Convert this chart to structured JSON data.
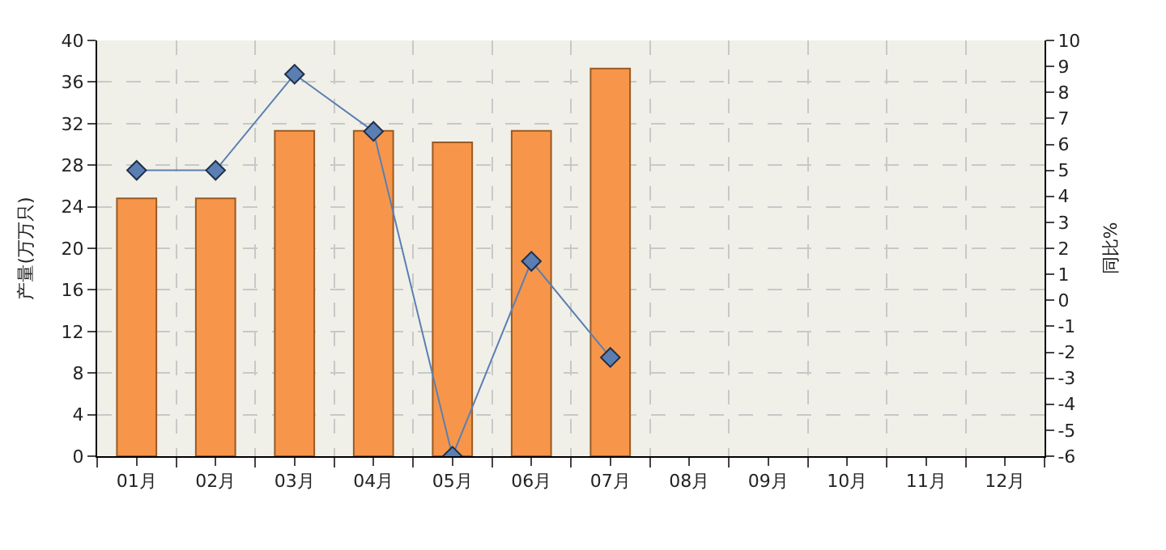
{
  "chart_data": {
    "type": "bar",
    "ylabel": "产量(万万只)",
    "y2label": "同比%",
    "categories": [
      "01月",
      "02月",
      "03月",
      "04月",
      "05月",
      "06月",
      "07月",
      "08月",
      "09月",
      "10月",
      "11月",
      "12月"
    ],
    "series": [
      {
        "color": "#f7964a",
        "values": [
          24.8,
          24.8,
          31.3,
          31.3,
          30.2,
          31.3,
          37.3,
          null,
          null,
          null,
          null,
          null
        ]
      },
      {
        "type": "line",
        "axis": "y2",
        "color": "#5b7fb2",
        "marker": "diamond",
        "values": [
          5.0,
          5.0,
          8.7,
          6.5,
          -6.0,
          1.5,
          -2.2,
          null,
          null,
          null,
          null,
          null
        ]
      }
    ],
    "ylim": [
      0,
      40
    ],
    "yticks": [
      0,
      4,
      8,
      12,
      16,
      20,
      24,
      28,
      32,
      36,
      40
    ],
    "y2lim": [
      -6,
      10
    ],
    "y2ticks": [
      -6,
      -5,
      -4,
      -3,
      -2,
      -1,
      0,
      1,
      2,
      3,
      4,
      5,
      6,
      7,
      8,
      9,
      10
    ],
    "grid": true
  }
}
